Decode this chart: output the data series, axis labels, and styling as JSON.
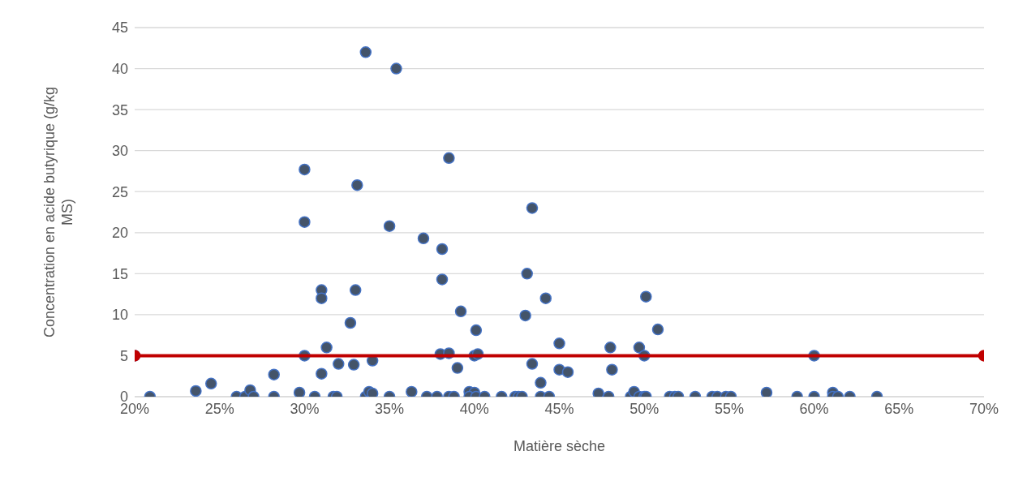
{
  "chart_data": {
    "type": "scatter",
    "xlabel": "Matière sèche",
    "ylabel": "Concentration en acide butyrique (g/kg MS)",
    "xlim": [
      20,
      70
    ],
    "xticks": [
      {
        "value": 20,
        "label": "20%"
      },
      {
        "value": 25,
        "label": "25%"
      },
      {
        "value": 30,
        "label": "30%"
      },
      {
        "value": 35,
        "label": "35%"
      },
      {
        "value": 40,
        "label": "40%"
      },
      {
        "value": 45,
        "label": "45%"
      },
      {
        "value": 50,
        "label": "50%"
      },
      {
        "value": 55,
        "label": "55%"
      },
      {
        "value": 60,
        "label": "60%"
      },
      {
        "value": 65,
        "label": "65%"
      },
      {
        "value": 70,
        "label": "70%"
      }
    ],
    "ylim": [
      0,
      45
    ],
    "yticks": [
      0,
      5,
      10,
      15,
      20,
      25,
      30,
      35,
      40,
      45
    ],
    "grid": "y",
    "marker": "circle",
    "series": [
      {
        "color": "#44546a",
        "x": [
          20,
          20.9,
          23.6,
          24.5,
          26.0,
          26.5,
          26.8,
          27.0,
          28.2,
          28.2,
          29.7,
          30.0,
          30.0,
          30.0,
          30.6,
          31.0,
          31.0,
          31.3,
          31.0,
          31.7,
          31.9,
          32.0,
          32.7,
          33.1,
          33.0,
          32.9,
          33.6,
          33.6,
          33.8,
          34.0,
          34.0,
          35.4,
          35.0,
          35.0,
          36.3,
          37.2,
          37.0,
          37.8,
          38.1,
          38.1,
          38.0,
          38.5,
          38.5,
          38.5,
          38.8,
          39.2,
          39.0,
          40.1,
          40.0,
          40.2,
          39.7,
          40.0,
          39.7,
          40.1,
          40.6,
          41.6,
          42.4,
          42.6,
          42.8,
          43.4,
          43.1,
          43.0,
          43.4,
          43.9,
          43.9,
          44.4,
          44.2,
          45.0,
          45.0,
          45.5,
          47.3,
          47.9,
          48.0,
          48.1,
          49.2,
          49.4,
          49.7,
          50.0,
          49.7,
          50.0,
          50.1,
          50.1,
          50.8,
          51.5,
          51.8,
          52.0,
          53.0,
          54.0,
          54.3,
          54.8,
          55.1,
          57.2,
          59.0,
          60.0,
          60.0,
          61.1,
          61.1,
          61.4,
          62.1,
          63.7
        ],
        "values": [
          5.0,
          0,
          0.7,
          1.6,
          0,
          0,
          0.8,
          0,
          2.7,
          0,
          0.5,
          27.7,
          21.3,
          5.0,
          0,
          13.0,
          12.0,
          6.0,
          2.8,
          0,
          0,
          4.0,
          9.0,
          25.8,
          13.0,
          3.9,
          42.0,
          0,
          0.6,
          0.4,
          4.4,
          40.0,
          20.8,
          0,
          0.6,
          0,
          19.3,
          0,
          18.0,
          14.3,
          5.2,
          29.1,
          5.3,
          0,
          0,
          10.4,
          3.5,
          8.1,
          5.0,
          5.2,
          0.6,
          0.5,
          0,
          0,
          0,
          0,
          0,
          0,
          0,
          23.0,
          15.0,
          9.9,
          4.0,
          1.7,
          0,
          0,
          12.0,
          6.5,
          3.3,
          3.0,
          0.4,
          0,
          6.0,
          3.3,
          0,
          0.6,
          6.0,
          5.0,
          0,
          0,
          0,
          12.2,
          8.2,
          0,
          0,
          0,
          0,
          0,
          0,
          0,
          0,
          0.5,
          0,
          0,
          5.0,
          0.5,
          0,
          0,
          0,
          0
        ]
      },
      {
        "type": "line",
        "color": "#c00000",
        "x": [
          20,
          70
        ],
        "values": [
          5,
          5
        ]
      }
    ]
  }
}
